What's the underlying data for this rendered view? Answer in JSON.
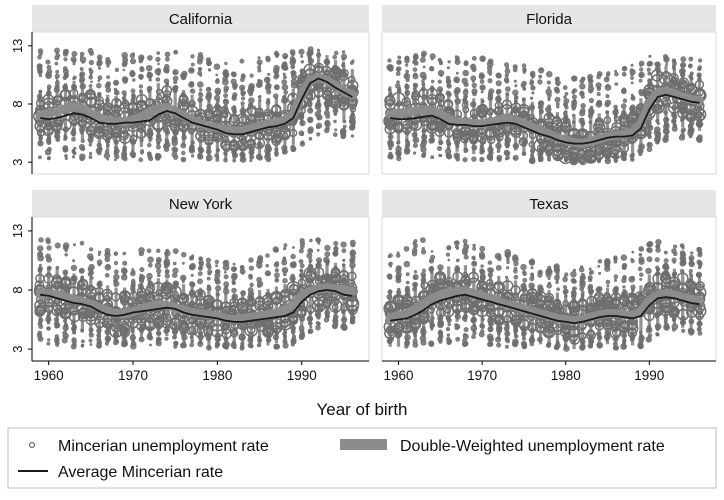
{
  "chart_data": {
    "type": "scatter",
    "layout": "2x2 small multiples",
    "xlabel": "Year of birth",
    "ylabel": "",
    "xlim": [
      1958.5,
      1997.5
    ],
    "ylim": [
      2.5,
      13.5
    ],
    "xticks": [
      1960,
      1970,
      1980,
      1990
    ],
    "yticks": [
      3,
      8,
      13
    ],
    "grid": false,
    "legend": {
      "placement": "bottom",
      "entries": [
        {
          "key": "mincerian",
          "label": "Mincerian unemployment rate",
          "symbol": "hollow circles",
          "color": "#6e6e6e"
        },
        {
          "key": "double",
          "label": "Double-Weighted unemployment rate",
          "symbol": "thick band",
          "color": "#8c8c8c"
        },
        {
          "key": "average",
          "label": "Average Mincerian rate",
          "symbol": "line",
          "color": "#1a1a1a"
        }
      ]
    },
    "panels": [
      {
        "title": "California",
        "x": [
          1959,
          1960,
          1961,
          1962,
          1963,
          1964,
          1965,
          1966,
          1967,
          1968,
          1969,
          1970,
          1971,
          1972,
          1973,
          1974,
          1975,
          1976,
          1977,
          1978,
          1979,
          1980,
          1981,
          1982,
          1983,
          1984,
          1985,
          1986,
          1987,
          1988,
          1989,
          1990,
          1991,
          1992,
          1993,
          1994,
          1995,
          1996
        ],
        "avg": [
          6.8,
          6.7,
          6.8,
          7.0,
          7.2,
          7.1,
          6.8,
          6.4,
          6.3,
          6.3,
          6.4,
          6.4,
          6.5,
          6.6,
          7.1,
          7.4,
          7.2,
          6.8,
          6.4,
          6.2,
          6.0,
          5.8,
          5.5,
          5.4,
          5.4,
          5.6,
          5.8,
          6.0,
          6.1,
          6.3,
          6.8,
          8.4,
          9.8,
          10.2,
          9.9,
          9.4,
          9.0,
          8.6
        ],
        "dw": [
          7.0,
          7.2,
          7.4,
          7.6,
          7.8,
          7.6,
          7.2,
          6.8,
          6.6,
          6.5,
          6.5,
          6.6,
          6.9,
          7.3,
          7.6,
          7.7,
          7.4,
          7.0,
          6.6,
          6.3,
          6.1,
          6.0,
          5.8,
          5.6,
          5.7,
          5.9,
          6.1,
          6.3,
          6.4,
          6.6,
          7.1,
          8.8,
          10.0,
          10.3,
          10.0,
          9.6,
          9.1,
          8.8
        ],
        "spread_lo": [
          3.4,
          3.3,
          3.3,
          3.3,
          3.4,
          3.3,
          3.3,
          3.2,
          3.2,
          3.2,
          3.2,
          3.2,
          3.2,
          3.2,
          3.3,
          3.4,
          3.3,
          3.2,
          3.2,
          3.2,
          3.1,
          3.1,
          3.1,
          3.1,
          3.1,
          3.1,
          3.2,
          3.2,
          3.2,
          3.3,
          3.4,
          4.4,
          5.0,
          5.3,
          5.4,
          5.3,
          5.2,
          5.1
        ],
        "spread_hi": [
          12.6,
          12.6,
          12.7,
          12.6,
          12.5,
          12.7,
          12.6,
          12.7,
          12.5,
          12.6,
          12.5,
          12.6,
          12.6,
          12.5,
          12.7,
          12.6,
          12.5,
          12.4,
          12.2,
          12.3,
          12.1,
          11.9,
          11.7,
          11.6,
          11.7,
          11.8,
          12.1,
          12.3,
          12.5,
          12.6,
          12.7,
          12.9,
          12.8,
          12.8,
          12.7,
          12.6,
          12.5,
          12.4
        ]
      },
      {
        "title": "Florida",
        "x": [
          1959,
          1960,
          1961,
          1962,
          1963,
          1964,
          1965,
          1966,
          1967,
          1968,
          1969,
          1970,
          1971,
          1972,
          1973,
          1974,
          1975,
          1976,
          1977,
          1978,
          1979,
          1980,
          1981,
          1982,
          1983,
          1984,
          1985,
          1986,
          1987,
          1988,
          1989,
          1990,
          1991,
          1992,
          1993,
          1994,
          1995,
          1996
        ],
        "avg": [
          6.8,
          6.7,
          6.7,
          6.8,
          6.9,
          7.0,
          6.7,
          6.3,
          6.2,
          6.2,
          6.1,
          6.1,
          6.2,
          6.3,
          6.4,
          6.3,
          6.0,
          5.7,
          5.4,
          5.2,
          4.9,
          4.7,
          4.6,
          4.6,
          4.7,
          4.9,
          5.1,
          5.2,
          5.2,
          5.3,
          5.9,
          7.5,
          8.6,
          8.8,
          8.6,
          8.4,
          8.2,
          8.1
        ],
        "dw": [
          7.1,
          7.2,
          7.3,
          7.4,
          7.5,
          7.4,
          7.1,
          6.7,
          6.5,
          6.4,
          6.3,
          6.3,
          6.4,
          6.6,
          6.8,
          6.6,
          6.3,
          6.0,
          5.7,
          5.4,
          5.1,
          4.9,
          4.7,
          4.6,
          4.8,
          5.0,
          5.2,
          5.3,
          5.4,
          5.6,
          6.3,
          8.0,
          9.0,
          9.1,
          8.9,
          8.6,
          8.4,
          8.3
        ],
        "spread_lo": [
          3.3,
          3.3,
          3.3,
          3.3,
          3.3,
          3.3,
          3.3,
          3.2,
          3.2,
          3.2,
          3.2,
          3.2,
          3.2,
          3.2,
          3.2,
          3.2,
          3.2,
          3.1,
          3.1,
          3.1,
          3.1,
          3.1,
          3.0,
          3.0,
          3.0,
          3.0,
          3.1,
          3.1,
          3.1,
          3.2,
          3.3,
          4.0,
          4.6,
          4.9,
          5.0,
          5.0,
          4.9,
          4.8
        ],
        "spread_hi": [
          12.3,
          12.4,
          12.4,
          12.3,
          12.4,
          12.4,
          12.3,
          12.2,
          12.1,
          12.0,
          12.0,
          11.9,
          11.9,
          11.8,
          11.7,
          11.6,
          11.4,
          11.2,
          11.0,
          10.8,
          10.6,
          10.4,
          10.3,
          10.4,
          10.5,
          10.6,
          10.8,
          11.0,
          11.2,
          11.4,
          11.8,
          12.2,
          12.3,
          12.3,
          12.2,
          12.1,
          12.0,
          11.9
        ]
      },
      {
        "title": "New York",
        "x": [
          1959,
          1960,
          1961,
          1962,
          1963,
          1964,
          1965,
          1966,
          1967,
          1968,
          1969,
          1970,
          1971,
          1972,
          1973,
          1974,
          1975,
          1976,
          1977,
          1978,
          1979,
          1980,
          1981,
          1982,
          1983,
          1984,
          1985,
          1986,
          1987,
          1988,
          1989,
          1990,
          1991,
          1992,
          1993,
          1994,
          1995,
          1996
        ],
        "avg": [
          7.6,
          7.5,
          7.3,
          7.1,
          6.9,
          6.8,
          6.6,
          6.2,
          5.9,
          5.8,
          5.9,
          6.1,
          6.2,
          6.3,
          6.4,
          6.5,
          6.4,
          6.1,
          5.9,
          5.8,
          5.7,
          5.6,
          5.4,
          5.3,
          5.3,
          5.4,
          5.5,
          5.6,
          5.7,
          5.8,
          6.1,
          7.0,
          7.6,
          7.9,
          8.0,
          7.9,
          7.6,
          7.5
        ],
        "dw": [
          7.7,
          7.7,
          7.6,
          7.4,
          7.2,
          7.0,
          6.8,
          6.5,
          6.2,
          6.0,
          6.0,
          6.2,
          6.4,
          6.6,
          6.8,
          6.7,
          6.5,
          6.3,
          6.1,
          6.0,
          5.9,
          5.8,
          5.6,
          5.5,
          5.6,
          5.7,
          5.8,
          5.9,
          6.1,
          6.3,
          6.8,
          7.5,
          7.9,
          8.1,
          8.2,
          8.1,
          8.0,
          7.9
        ],
        "spread_lo": [
          3.3,
          3.3,
          3.3,
          3.3,
          3.2,
          3.2,
          3.2,
          3.2,
          3.1,
          3.1,
          3.1,
          3.1,
          3.1,
          3.2,
          3.2,
          3.2,
          3.2,
          3.1,
          3.1,
          3.1,
          3.1,
          3.1,
          3.1,
          3.0,
          3.0,
          3.1,
          3.1,
          3.1,
          3.1,
          3.2,
          3.3,
          3.9,
          4.4,
          4.7,
          4.8,
          4.9,
          4.8,
          4.7
        ],
        "spread_hi": [
          12.4,
          12.4,
          12.3,
          12.2,
          12.1,
          12.0,
          11.8,
          11.6,
          11.4,
          11.3,
          11.3,
          11.4,
          11.5,
          11.5,
          11.6,
          11.5,
          11.3,
          11.1,
          10.9,
          10.8,
          10.7,
          10.6,
          10.5,
          10.4,
          10.4,
          10.6,
          10.9,
          11.2,
          11.5,
          11.8,
          12.1,
          12.4,
          12.5,
          12.4,
          12.3,
          12.2,
          12.1,
          12.0
        ]
      },
      {
        "title": "Texas",
        "x": [
          1959,
          1960,
          1961,
          1962,
          1963,
          1964,
          1965,
          1966,
          1967,
          1968,
          1969,
          1970,
          1971,
          1972,
          1973,
          1974,
          1975,
          1976,
          1977,
          1978,
          1979,
          1980,
          1981,
          1982,
          1983,
          1984,
          1985,
          1986,
          1987,
          1988,
          1989,
          1990,
          1991,
          1992,
          1993,
          1994,
          1995,
          1996
        ],
        "avg": [
          5.4,
          5.5,
          5.6,
          5.9,
          6.3,
          6.8,
          7.1,
          7.3,
          7.5,
          7.6,
          7.4,
          7.2,
          7.0,
          6.8,
          6.6,
          6.4,
          6.2,
          6.0,
          5.8,
          5.6,
          5.4,
          5.3,
          5.2,
          5.3,
          5.5,
          5.7,
          5.8,
          5.8,
          5.7,
          5.6,
          5.8,
          6.7,
          7.3,
          7.4,
          7.3,
          7.1,
          6.9,
          6.8
        ],
        "dw": [
          5.6,
          5.8,
          6.0,
          6.4,
          6.8,
          7.3,
          7.6,
          7.8,
          7.9,
          7.9,
          7.7,
          7.5,
          7.3,
          7.0,
          6.8,
          6.6,
          6.4,
          6.2,
          6.0,
          5.8,
          5.6,
          5.5,
          5.4,
          5.5,
          5.7,
          5.9,
          6.0,
          6.0,
          5.9,
          5.9,
          6.2,
          7.1,
          7.6,
          7.7,
          7.6,
          7.4,
          7.2,
          7.1
        ],
        "spread_lo": [
          3.2,
          3.2,
          3.2,
          3.3,
          3.3,
          3.4,
          3.4,
          3.4,
          3.4,
          3.4,
          3.3,
          3.3,
          3.3,
          3.2,
          3.2,
          3.2,
          3.2,
          3.1,
          3.1,
          3.1,
          3.1,
          3.0,
          3.0,
          3.0,
          3.1,
          3.1,
          3.1,
          3.1,
          3.1,
          3.1,
          3.2,
          3.8,
          4.2,
          4.4,
          4.5,
          4.5,
          4.4,
          4.3
        ],
        "spread_hi": [
          11.6,
          11.8,
          12.0,
          12.2,
          12.3,
          12.4,
          12.4,
          12.4,
          12.3,
          12.2,
          12.0,
          11.8,
          11.6,
          11.4,
          11.2,
          11.0,
          10.8,
          10.6,
          10.4,
          10.3,
          10.2,
          10.1,
          10.0,
          10.1,
          10.3,
          10.5,
          10.7,
          10.9,
          11.1,
          11.3,
          11.6,
          12.0,
          12.1,
          12.1,
          12.0,
          11.9,
          11.8,
          11.7
        ]
      }
    ]
  }
}
